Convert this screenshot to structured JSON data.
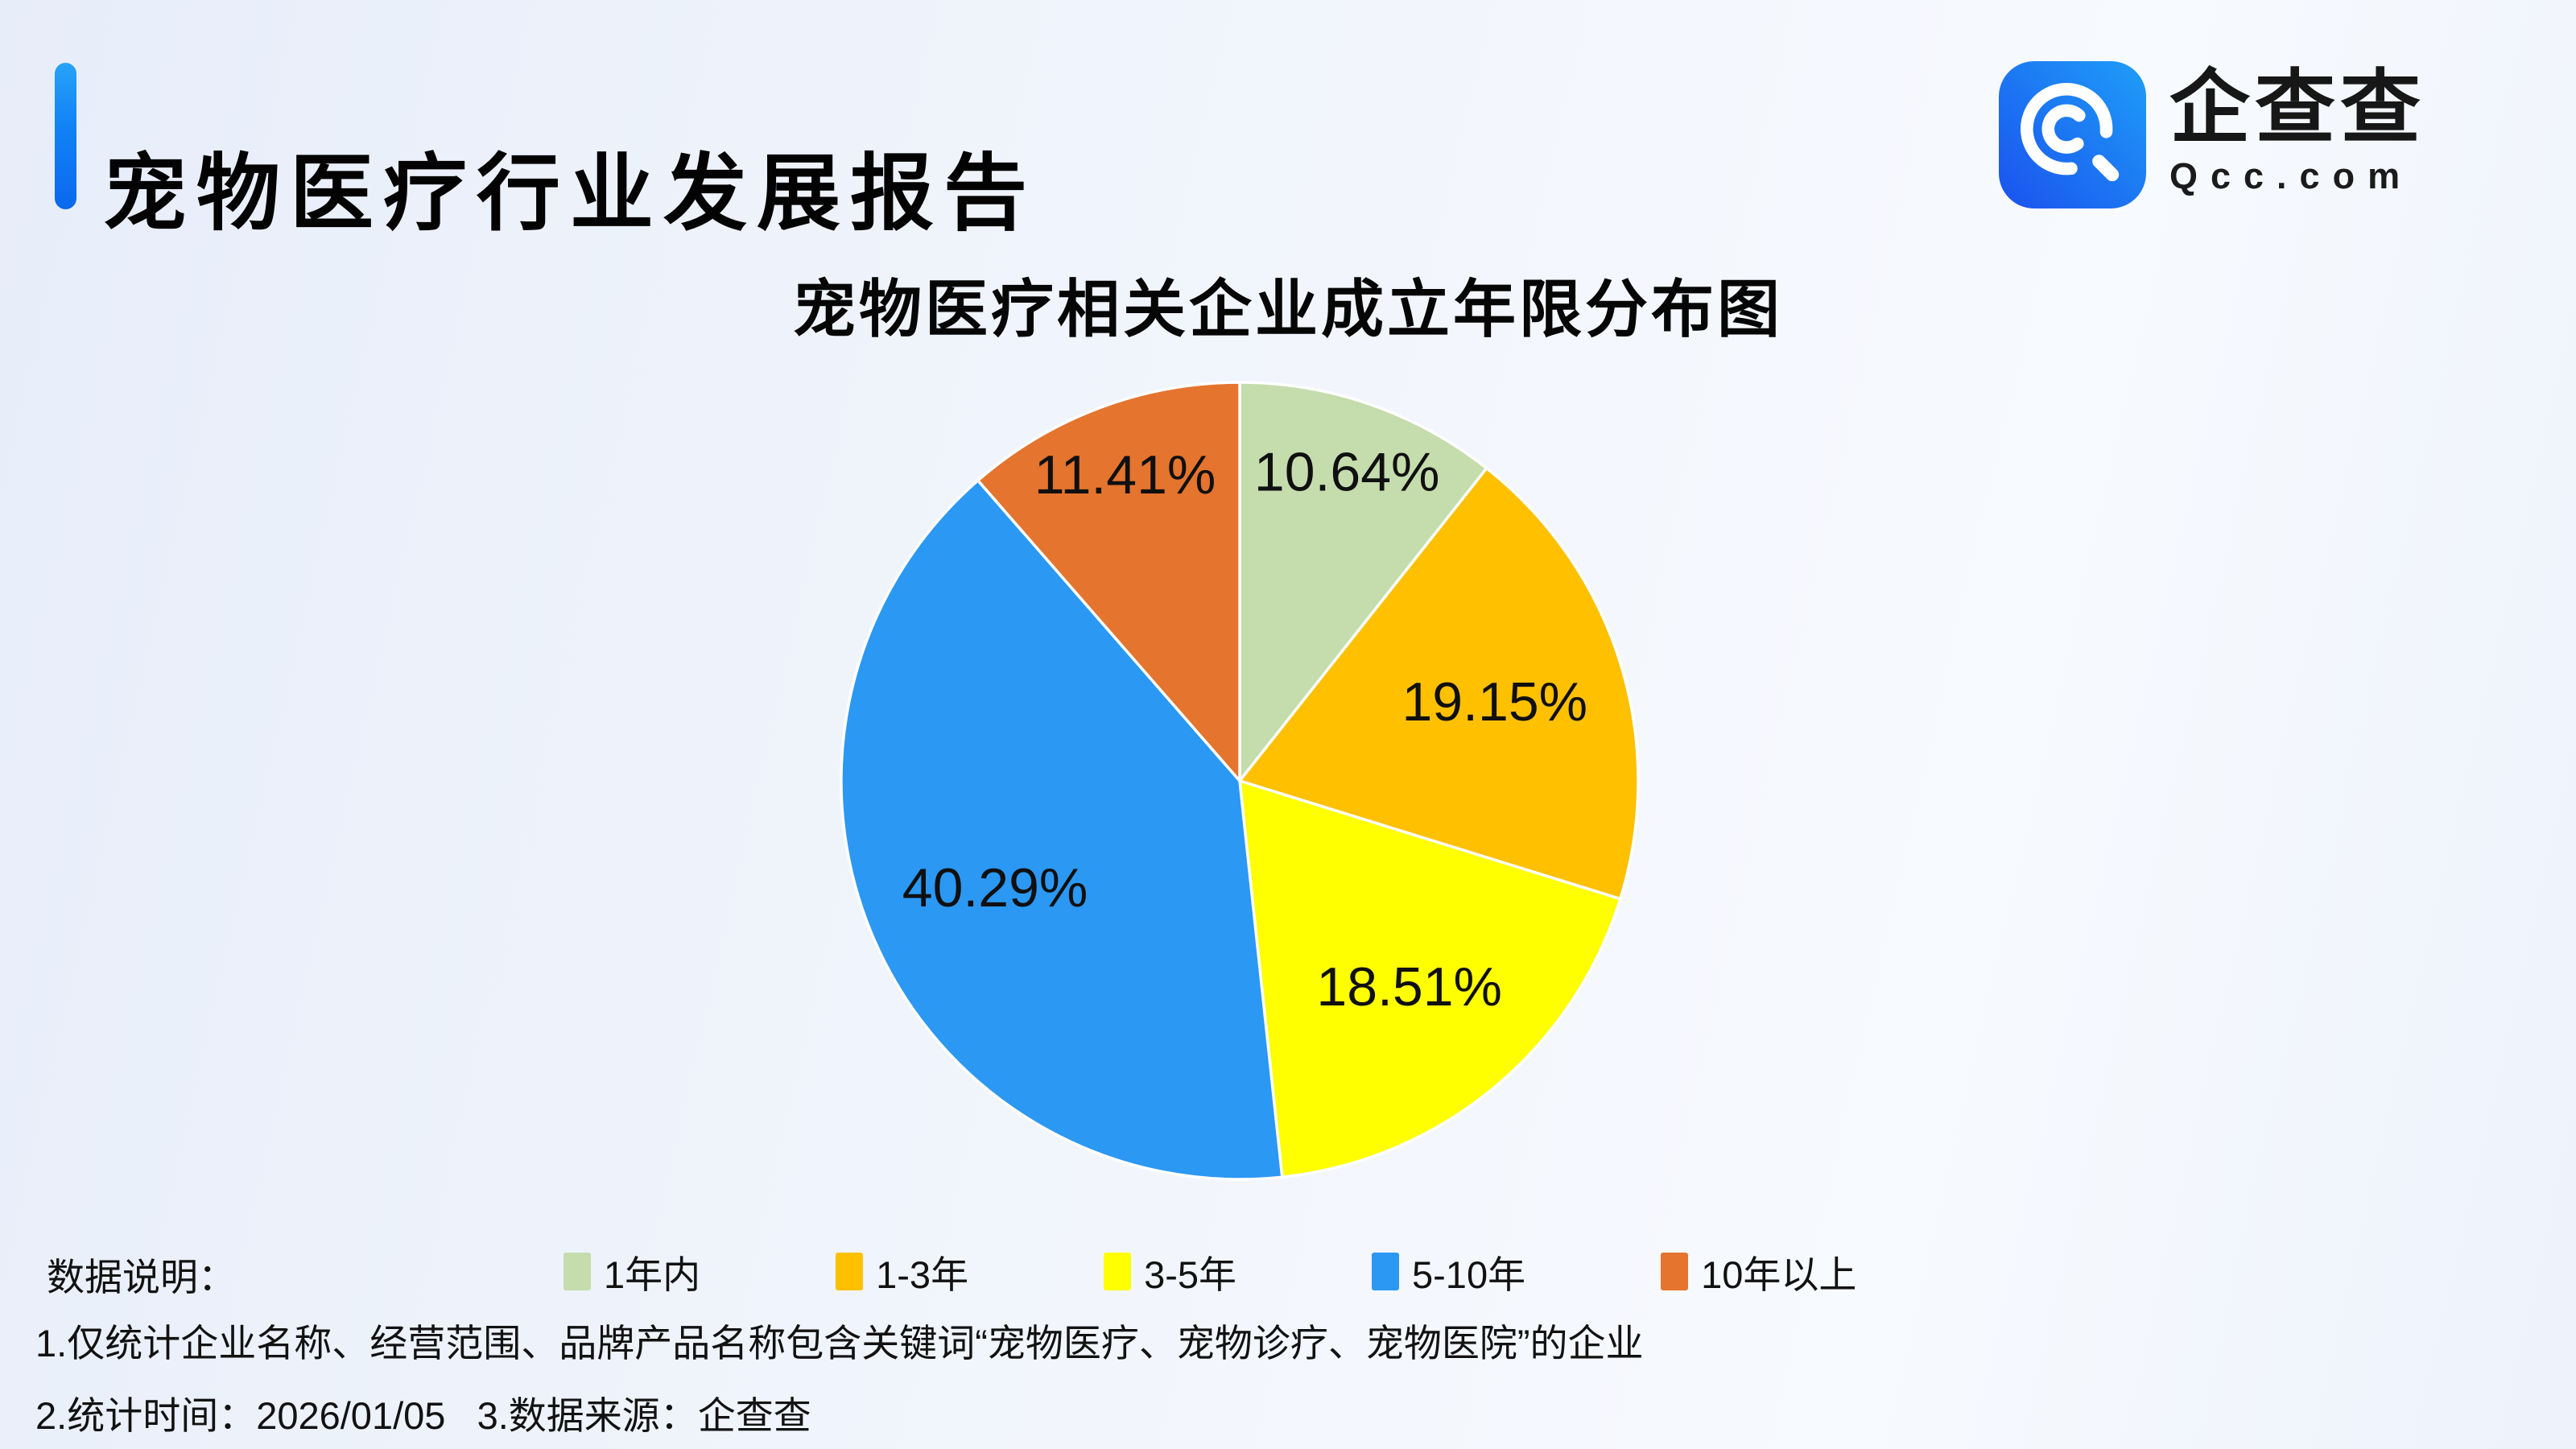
{
  "header": {
    "title": "宠物医疗行业发展报告",
    "logo": {
      "brand": "企查查",
      "domain": "Qcc.com",
      "icon": "qcc-magnifier-icon",
      "icon_gradient": [
        "#1a52ee",
        "#1f9ef8"
      ]
    }
  },
  "chart_data": {
    "type": "pie",
    "title": "宠物医疗相关企业成立年限分布图",
    "unit": "%",
    "start_angle_deg": 0,
    "direction": "clockwise",
    "legend_position": "bottom",
    "label_format": "value%",
    "slices": [
      {
        "label": "1年内",
        "value": 10.64,
        "color": "#C5DCAD"
      },
      {
        "label": "1-3年",
        "value": 19.15,
        "color": "#FFC000"
      },
      {
        "label": "3-5年",
        "value": 18.51,
        "color": "#FFFF00"
      },
      {
        "label": "5-10年",
        "value": 40.29,
        "color": "#2B98F3"
      },
      {
        "label": "10年以上",
        "value": 11.41,
        "color": "#E5742E"
      }
    ]
  },
  "footer": {
    "label": "数据说明：",
    "note1": "1.仅统计企业名称、经营范围、品牌产品名称包含关键词“宠物医疗、宠物诊疗、宠物医院”的企业",
    "note2": "2.统计时间：2026/01/05   3.数据来源：企查查"
  },
  "colors": {
    "accent_bar": "#0F6FF0",
    "background": "#EEF3FB",
    "slice_border": "#FFFFFF",
    "text": "#111111"
  }
}
